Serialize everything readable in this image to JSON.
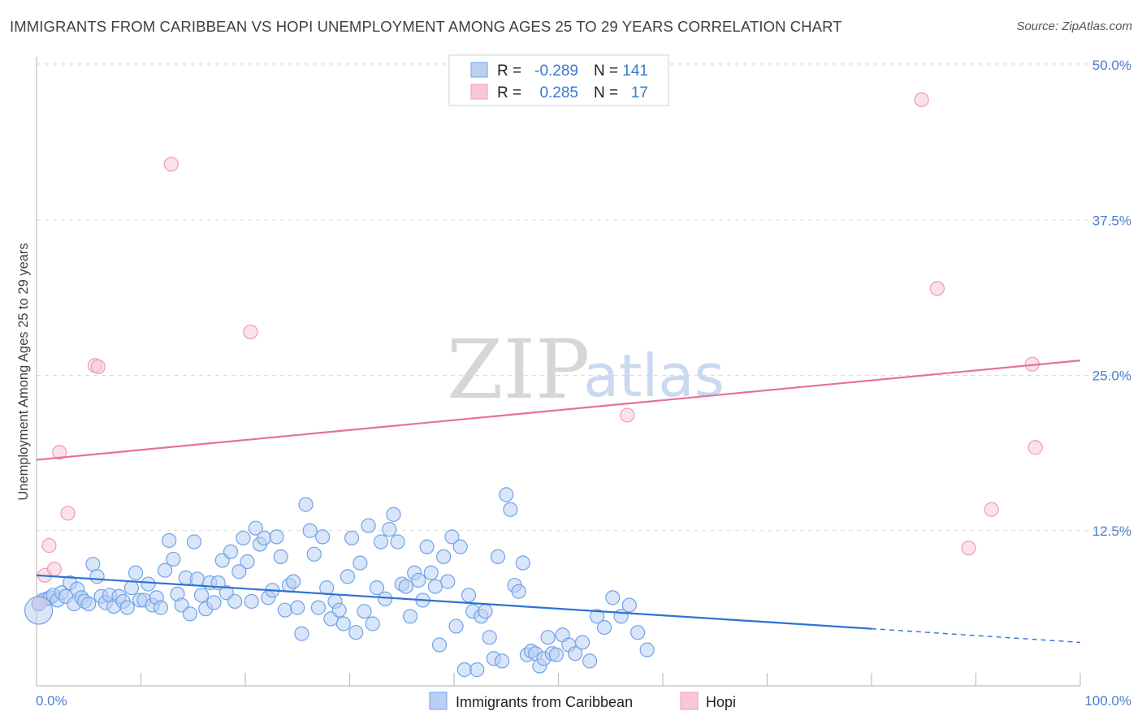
{
  "title": "IMMIGRANTS FROM CARIBBEAN VS HOPI UNEMPLOYMENT AMONG AGES 25 TO 29 YEARS CORRELATION CHART",
  "source": "Source: ZipAtlas.com",
  "watermark": {
    "zip": "ZIP",
    "atlas": "atlas"
  },
  "legend": {
    "rows": [
      {
        "r_label": "R =",
        "r_value": "-0.289",
        "n_label": "N =",
        "n_value": "141"
      },
      {
        "r_label": "R =",
        "r_value": "0.285",
        "n_label": "N =",
        "n_value": "17"
      }
    ]
  },
  "chart_data": {
    "type": "scatter",
    "xlabel": "",
    "ylabel": "Unemployment Among Ages 25 to 29 years",
    "xlim": [
      0,
      100
    ],
    "ylim": [
      0,
      50
    ],
    "x_tick_labels": [
      "0.0%",
      "100.0%"
    ],
    "y_tick_values": [
      12.5,
      25.0,
      37.5,
      50.0
    ],
    "y_tick_labels": [
      "12.5%",
      "25.0%",
      "37.5%",
      "50.0%"
    ],
    "grid": true,
    "series": [
      {
        "name": "Immigrants from Caribbean",
        "color": "#6fa3e8",
        "fill": "#b9d0f3",
        "line_color": "#2f72d4",
        "trend": {
          "x1": 0,
          "y1": 8.9,
          "x2": 80,
          "y2": 4.6,
          "dash_to_x": 100,
          "dash_to_y": 3.5
        },
        "points": [
          [
            0.2,
            6.6
          ],
          [
            0.6,
            6.9
          ],
          [
            1.0,
            7.0
          ],
          [
            1.3,
            7.1
          ],
          [
            1.6,
            7.3
          ],
          [
            2.0,
            6.9
          ],
          [
            2.4,
            7.5
          ],
          [
            2.8,
            7.2
          ],
          [
            3.2,
            8.3
          ],
          [
            3.6,
            6.6
          ],
          [
            3.9,
            7.8
          ],
          [
            4.3,
            7.1
          ],
          [
            4.6,
            6.8
          ],
          [
            5.0,
            6.6
          ],
          [
            5.4,
            9.8
          ],
          [
            5.8,
            8.8
          ],
          [
            6.2,
            7.2
          ],
          [
            6.6,
            6.7
          ],
          [
            7.0,
            7.3
          ],
          [
            7.4,
            6.4
          ],
          [
            7.9,
            7.2
          ],
          [
            8.3,
            6.8
          ],
          [
            8.7,
            6.3
          ],
          [
            9.1,
            7.9
          ],
          [
            9.5,
            9.1
          ],
          [
            9.9,
            6.9
          ],
          [
            10.3,
            6.9
          ],
          [
            10.7,
            8.2
          ],
          [
            11.1,
            6.5
          ],
          [
            11.5,
            7.1
          ],
          [
            11.9,
            6.3
          ],
          [
            12.3,
            9.3
          ],
          [
            12.7,
            11.7
          ],
          [
            13.1,
            10.2
          ],
          [
            13.5,
            7.4
          ],
          [
            13.9,
            6.5
          ],
          [
            14.3,
            8.7
          ],
          [
            14.7,
            5.8
          ],
          [
            15.1,
            11.6
          ],
          [
            15.4,
            8.6
          ],
          [
            15.8,
            7.3
          ],
          [
            16.2,
            6.2
          ],
          [
            16.6,
            8.3
          ],
          [
            17.0,
            6.7
          ],
          [
            17.4,
            8.3
          ],
          [
            17.8,
            10.1
          ],
          [
            18.2,
            7.5
          ],
          [
            18.6,
            10.8
          ],
          [
            19.0,
            6.8
          ],
          [
            19.4,
            9.2
          ],
          [
            19.8,
            11.9
          ],
          [
            20.2,
            10.0
          ],
          [
            20.6,
            6.8
          ],
          [
            21.0,
            12.7
          ],
          [
            21.4,
            11.4
          ],
          [
            21.8,
            11.9
          ],
          [
            22.2,
            7.1
          ],
          [
            22.6,
            7.7
          ],
          [
            23.0,
            12.0
          ],
          [
            23.4,
            10.4
          ],
          [
            23.8,
            6.1
          ],
          [
            24.2,
            8.1
          ],
          [
            24.6,
            8.4
          ],
          [
            25.0,
            6.3
          ],
          [
            25.4,
            4.2
          ],
          [
            25.8,
            14.6
          ],
          [
            26.2,
            12.5
          ],
          [
            26.6,
            10.6
          ],
          [
            27.0,
            6.3
          ],
          [
            27.4,
            12.0
          ],
          [
            27.8,
            7.9
          ],
          [
            28.2,
            5.4
          ],
          [
            28.6,
            6.8
          ],
          [
            29.0,
            6.1
          ],
          [
            29.4,
            5.0
          ],
          [
            29.8,
            8.8
          ],
          [
            30.2,
            11.9
          ],
          [
            30.6,
            4.3
          ],
          [
            31.0,
            9.9
          ],
          [
            31.4,
            6.0
          ],
          [
            31.8,
            12.9
          ],
          [
            32.2,
            5.0
          ],
          [
            32.6,
            7.9
          ],
          [
            33.0,
            11.6
          ],
          [
            33.4,
            7.0
          ],
          [
            33.8,
            12.6
          ],
          [
            34.2,
            13.8
          ],
          [
            34.6,
            11.6
          ],
          [
            35.0,
            8.2
          ],
          [
            35.4,
            8.0
          ],
          [
            35.8,
            5.6
          ],
          [
            36.2,
            9.1
          ],
          [
            36.6,
            8.5
          ],
          [
            37.0,
            6.9
          ],
          [
            37.4,
            11.2
          ],
          [
            37.8,
            9.1
          ],
          [
            38.2,
            8.0
          ],
          [
            38.6,
            3.3
          ],
          [
            39.0,
            10.4
          ],
          [
            39.4,
            8.4
          ],
          [
            39.8,
            12.0
          ],
          [
            40.2,
            4.8
          ],
          [
            40.6,
            11.2
          ],
          [
            41.0,
            1.3
          ],
          [
            41.4,
            7.3
          ],
          [
            41.8,
            6.0
          ],
          [
            42.2,
            1.3
          ],
          [
            42.6,
            5.6
          ],
          [
            43.0,
            6.0
          ],
          [
            43.4,
            3.9
          ],
          [
            43.8,
            2.2
          ],
          [
            44.2,
            10.4
          ],
          [
            44.6,
            2.0
          ],
          [
            45.0,
            15.4
          ],
          [
            45.4,
            14.2
          ],
          [
            45.8,
            8.1
          ],
          [
            46.2,
            7.6
          ],
          [
            46.6,
            9.9
          ],
          [
            47.0,
            2.5
          ],
          [
            47.4,
            2.8
          ],
          [
            47.8,
            2.6
          ],
          [
            48.2,
            1.6
          ],
          [
            48.6,
            2.2
          ],
          [
            49.0,
            3.9
          ],
          [
            49.4,
            2.6
          ],
          [
            49.8,
            2.5
          ],
          [
            50.4,
            4.1
          ],
          [
            51.0,
            3.3
          ],
          [
            51.6,
            2.6
          ],
          [
            52.3,
            3.5
          ],
          [
            53.0,
            2.0
          ],
          [
            53.7,
            5.6
          ],
          [
            54.4,
            4.7
          ],
          [
            55.2,
            7.1
          ],
          [
            56.0,
            5.6
          ],
          [
            56.8,
            6.5
          ],
          [
            57.6,
            4.3
          ],
          [
            58.5,
            2.9
          ]
        ]
      },
      {
        "name": "Hopi",
        "color": "#f09ab4",
        "fill": "#f8c8d7",
        "line_color": "#e8709a",
        "trend": {
          "x1": 0,
          "y1": 18.2,
          "x2": 100,
          "y2": 26.2
        },
        "points": [
          [
            0.3,
            6.7
          ],
          [
            0.8,
            8.9
          ],
          [
            1.2,
            11.3
          ],
          [
            1.7,
            9.4
          ],
          [
            2.2,
            18.8
          ],
          [
            3.0,
            13.9
          ],
          [
            5.6,
            25.8
          ],
          [
            5.9,
            25.7
          ],
          [
            12.9,
            42.0
          ],
          [
            20.5,
            28.5
          ],
          [
            56.6,
            21.8
          ],
          [
            84.8,
            47.2
          ],
          [
            86.3,
            32.0
          ],
          [
            89.3,
            11.1
          ],
          [
            91.5,
            14.2
          ],
          [
            95.4,
            25.9
          ],
          [
            95.7,
            19.2
          ]
        ]
      }
    ]
  }
}
